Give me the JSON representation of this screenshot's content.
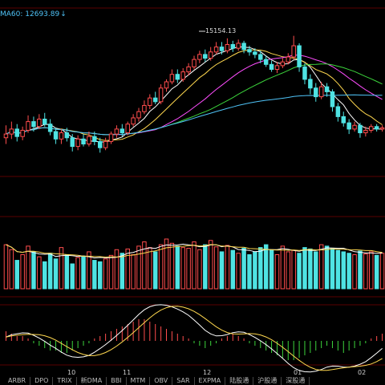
{
  "indicator": {
    "ma60_label": "MA60: 12693.89",
    "ma60_arrow": "↓"
  },
  "peak_label": "15154.13",
  "months": [
    {
      "label": "10"
    },
    {
      "label": "11"
    },
    {
      "label": "12"
    },
    {
      "label": "01"
    },
    {
      "label": "02"
    }
  ],
  "tabs": [
    "ARBR",
    "DPO",
    "TRIX",
    "新DMA",
    "BBI",
    "MTM",
    "OBV",
    "SAR",
    "EXPMA",
    "陆股通",
    "沪股通",
    "深股通"
  ],
  "colors": {
    "up": "#ff4d4d",
    "down": "#4fe3e3",
    "ma5": "#ffffff",
    "ma10": "#ffd84f",
    "ma20": "#ff4dff",
    "ma30": "#3cd53c",
    "ma60": "#4fc3f7",
    "grid": "#5a0000"
  },
  "chart_data": {
    "type": "candlestick",
    "peak_value": 15154.13,
    "ma60_last": 12693.89,
    "candles": [
      [
        15,
        18,
        25,
        10
      ],
      [
        18,
        22,
        28,
        14
      ],
      [
        22,
        16,
        26,
        12
      ],
      [
        16,
        21,
        24,
        13
      ],
      [
        21,
        28,
        33,
        19
      ],
      [
        28,
        24,
        32,
        20
      ],
      [
        24,
        30,
        34,
        22
      ],
      [
        30,
        26,
        35,
        24
      ],
      [
        26,
        20,
        30,
        17
      ],
      [
        20,
        14,
        23,
        10
      ],
      [
        14,
        19,
        22,
        10
      ],
      [
        19,
        15,
        23,
        12
      ],
      [
        15,
        8,
        18,
        4
      ],
      [
        8,
        14,
        17,
        5
      ],
      [
        14,
        10,
        18,
        8
      ],
      [
        10,
        16,
        20,
        8
      ],
      [
        16,
        12,
        20,
        9
      ],
      [
        12,
        7,
        15,
        3
      ],
      [
        7,
        12,
        15,
        5
      ],
      [
        12,
        18,
        20,
        10
      ],
      [
        18,
        22,
        25,
        15
      ],
      [
        22,
        19,
        26,
        16
      ],
      [
        19,
        26,
        28,
        17
      ],
      [
        26,
        31,
        34,
        24
      ],
      [
        31,
        36,
        39,
        28
      ],
      [
        36,
        41,
        45,
        34
      ],
      [
        41,
        47,
        50,
        38
      ],
      [
        47,
        44,
        52,
        42
      ],
      [
        44,
        55,
        58,
        42
      ],
      [
        55,
        60,
        62,
        52
      ],
      [
        60,
        66,
        70,
        58
      ],
      [
        66,
        62,
        70,
        59
      ],
      [
        62,
        68,
        71,
        60
      ],
      [
        68,
        72,
        75,
        65
      ],
      [
        72,
        78,
        81,
        70
      ],
      [
        78,
        82,
        85,
        75
      ],
      [
        82,
        79,
        86,
        76
      ],
      [
        79,
        84,
        88,
        77
      ],
      [
        84,
        88,
        92,
        82
      ],
      [
        88,
        85,
        92,
        82
      ],
      [
        85,
        90,
        95,
        83
      ],
      [
        90,
        87,
        93,
        84
      ],
      [
        87,
        91,
        94,
        85
      ],
      [
        91,
        86,
        93,
        83
      ],
      [
        86,
        84,
        89,
        81
      ],
      [
        84,
        82,
        87,
        79
      ],
      [
        82,
        78,
        85,
        75
      ],
      [
        78,
        74,
        81,
        72
      ],
      [
        74,
        70,
        77,
        68
      ],
      [
        70,
        73,
        76,
        67
      ],
      [
        73,
        76,
        79,
        71
      ],
      [
        76,
        80,
        83,
        74
      ],
      [
        80,
        89,
        97,
        78
      ],
      [
        89,
        72,
        91,
        68
      ],
      [
        72,
        62,
        75,
        58
      ],
      [
        62,
        55,
        66,
        50
      ],
      [
        55,
        48,
        59,
        44
      ],
      [
        48,
        56,
        60,
        46
      ],
      [
        56,
        52,
        59,
        48
      ],
      [
        52,
        40,
        54,
        36
      ],
      [
        40,
        32,
        43,
        28
      ],
      [
        32,
        27,
        36,
        24
      ],
      [
        27,
        22,
        30,
        18
      ],
      [
        22,
        25,
        28,
        20
      ],
      [
        25,
        19,
        27,
        15
      ],
      [
        19,
        21,
        24,
        16
      ],
      [
        21,
        24,
        26,
        19
      ],
      [
        24,
        22,
        26,
        20
      ],
      [
        22,
        23,
        25,
        20
      ]
    ],
    "volume": [
      62,
      55,
      40,
      48,
      60,
      52,
      45,
      38,
      50,
      42,
      58,
      48,
      35,
      44,
      46,
      52,
      40,
      38,
      42,
      47,
      55,
      50,
      56,
      48,
      60,
      66,
      58,
      52,
      62,
      70,
      64,
      60,
      58,
      57,
      66,
      55,
      62,
      68,
      59,
      52,
      61,
      54,
      50,
      57,
      48,
      52,
      58,
      62,
      55,
      48,
      60,
      52,
      54,
      50,
      58,
      56,
      52,
      62,
      60,
      57,
      54,
      52,
      50,
      48,
      53,
      49,
      52,
      47,
      50
    ],
    "macd_hist": [
      4,
      3,
      2,
      2,
      1,
      -1,
      -2,
      -3,
      -4,
      -4,
      -5,
      -5,
      -4,
      -3,
      -2,
      -1,
      1,
      2,
      3,
      4,
      5,
      6,
      7,
      8,
      9,
      9,
      8,
      7,
      6,
      5,
      4,
      3,
      2,
      1,
      -1,
      -2,
      -3,
      -2,
      -1,
      1,
      2,
      3,
      2,
      1,
      -1,
      -2,
      -3,
      -4,
      -5,
      -6,
      -7,
      -8,
      -8,
      -7,
      -6,
      -5,
      -4,
      -3,
      -2,
      -3,
      -4,
      -5,
      -4,
      -3,
      -2,
      -1,
      1,
      2,
      3
    ]
  }
}
